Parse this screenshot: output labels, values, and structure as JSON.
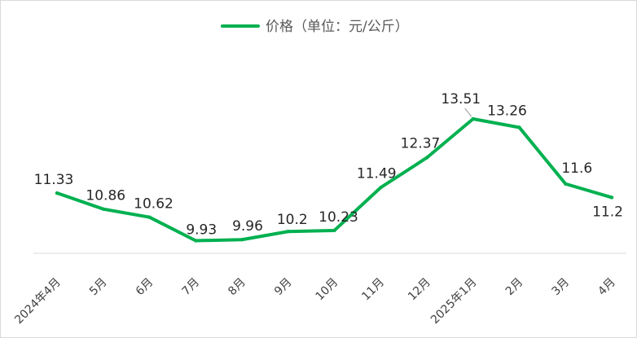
{
  "chart_data": {
    "type": "line",
    "categories": [
      "2024年4月",
      "5月",
      "6月",
      "7月",
      "8月",
      "9月",
      "10月",
      "11月",
      "12月",
      "2025年1月",
      "2月",
      "3月",
      "4月"
    ],
    "series": [
      {
        "name": "价格（单位：元/公斤）",
        "values": [
          11.33,
          10.86,
          10.62,
          9.93,
          9.96,
          10.2,
          10.23,
          11.49,
          12.37,
          13.51,
          13.26,
          11.6,
          11.2
        ],
        "labels": [
          "11.33",
          "10.86",
          "10.62",
          "9.93",
          "9.96",
          "10.2",
          "10.23",
          "11.49",
          "12.37",
          "13.51",
          "13.26",
          "11.6",
          "11.2"
        ]
      }
    ],
    "title": "",
    "xlabel": "",
    "ylabel": "",
    "grid": false,
    "legend_position": "top",
    "colors": {
      "line": "#00b050",
      "axis": "#d9d9d9",
      "label_text": "#262626",
      "tick_text": "#404040",
      "leader_line": "#a6a6a6"
    }
  }
}
